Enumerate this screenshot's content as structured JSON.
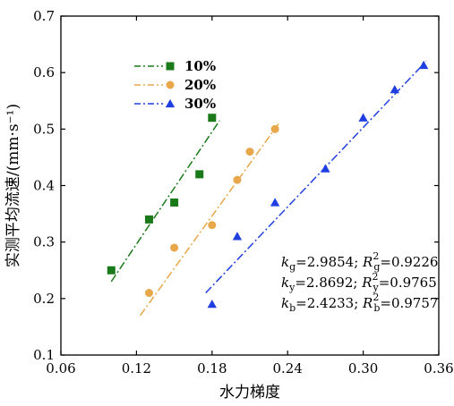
{
  "chart_data": {
    "type": "scatter",
    "xlabel": "水力梯度",
    "ylabel": "实测平均流速/(mm·s⁻¹)",
    "xlim": [
      0.06,
      0.36
    ],
    "ylim": [
      0.1,
      0.7
    ],
    "xticks": [
      0.06,
      0.12,
      0.18,
      0.24,
      0.3,
      0.36
    ],
    "xtick_labels": [
      "0.06",
      "0.12",
      "0.18",
      "0.24",
      "0.30",
      "0.36"
    ],
    "yticks": [
      0.1,
      0.2,
      0.3,
      0.4,
      0.5,
      0.6,
      0.7
    ],
    "ytick_labels": [
      "0.1",
      "0.2",
      "0.3",
      "0.4",
      "0.5",
      "0.6",
      "0.7"
    ],
    "grid": false,
    "legend_position": "top-left",
    "series": [
      {
        "name": "10%",
        "marker": "square",
        "color": "#1a7a1a",
        "line_style": "dash-dot",
        "points": [
          [
            0.1,
            0.25
          ],
          [
            0.13,
            0.34
          ],
          [
            0.15,
            0.37
          ],
          [
            0.17,
            0.42
          ],
          [
            0.18,
            0.52
          ]
        ],
        "fit_line": [
          [
            0.1,
            0.23
          ],
          [
            0.186,
            0.515
          ]
        ]
      },
      {
        "name": "20%",
        "marker": "circle",
        "color": "#e8a74a",
        "line_style": "dash-dot",
        "points": [
          [
            0.13,
            0.21
          ],
          [
            0.15,
            0.29
          ],
          [
            0.18,
            0.33
          ],
          [
            0.2,
            0.41
          ],
          [
            0.21,
            0.46
          ],
          [
            0.23,
            0.5
          ]
        ],
        "fit_line": [
          [
            0.123,
            0.17
          ],
          [
            0.233,
            0.51
          ]
        ]
      },
      {
        "name": "30%",
        "marker": "triangle",
        "color": "#1f3fe0",
        "line_style": "dash-dot",
        "points": [
          [
            0.18,
            0.19
          ],
          [
            0.2,
            0.31
          ],
          [
            0.23,
            0.37
          ],
          [
            0.27,
            0.43
          ],
          [
            0.3,
            0.52
          ],
          [
            0.325,
            0.57
          ],
          [
            0.348,
            0.613
          ]
        ],
        "fit_line": [
          [
            0.175,
            0.21
          ],
          [
            0.35,
            0.62
          ]
        ]
      }
    ],
    "annotations": [
      {
        "k_base": "k",
        "k_sub": "g",
        "k_value": "=2.9854; ",
        "r_base": "R",
        "r_sup": "2",
        "r_sub": "g",
        "r_value": "=0.9226"
      },
      {
        "k_base": "k",
        "k_sub": "y",
        "k_value": "=2.8692; ",
        "r_base": "R",
        "r_sup": "2",
        "r_sub": "y",
        "r_value": "=0.9765"
      },
      {
        "k_base": "k",
        "k_sub": "b",
        "k_value": "=2.4233; ",
        "r_base": "R",
        "r_sup": "2",
        "r_sub": "b",
        "r_value": "=0.9757"
      }
    ]
  }
}
